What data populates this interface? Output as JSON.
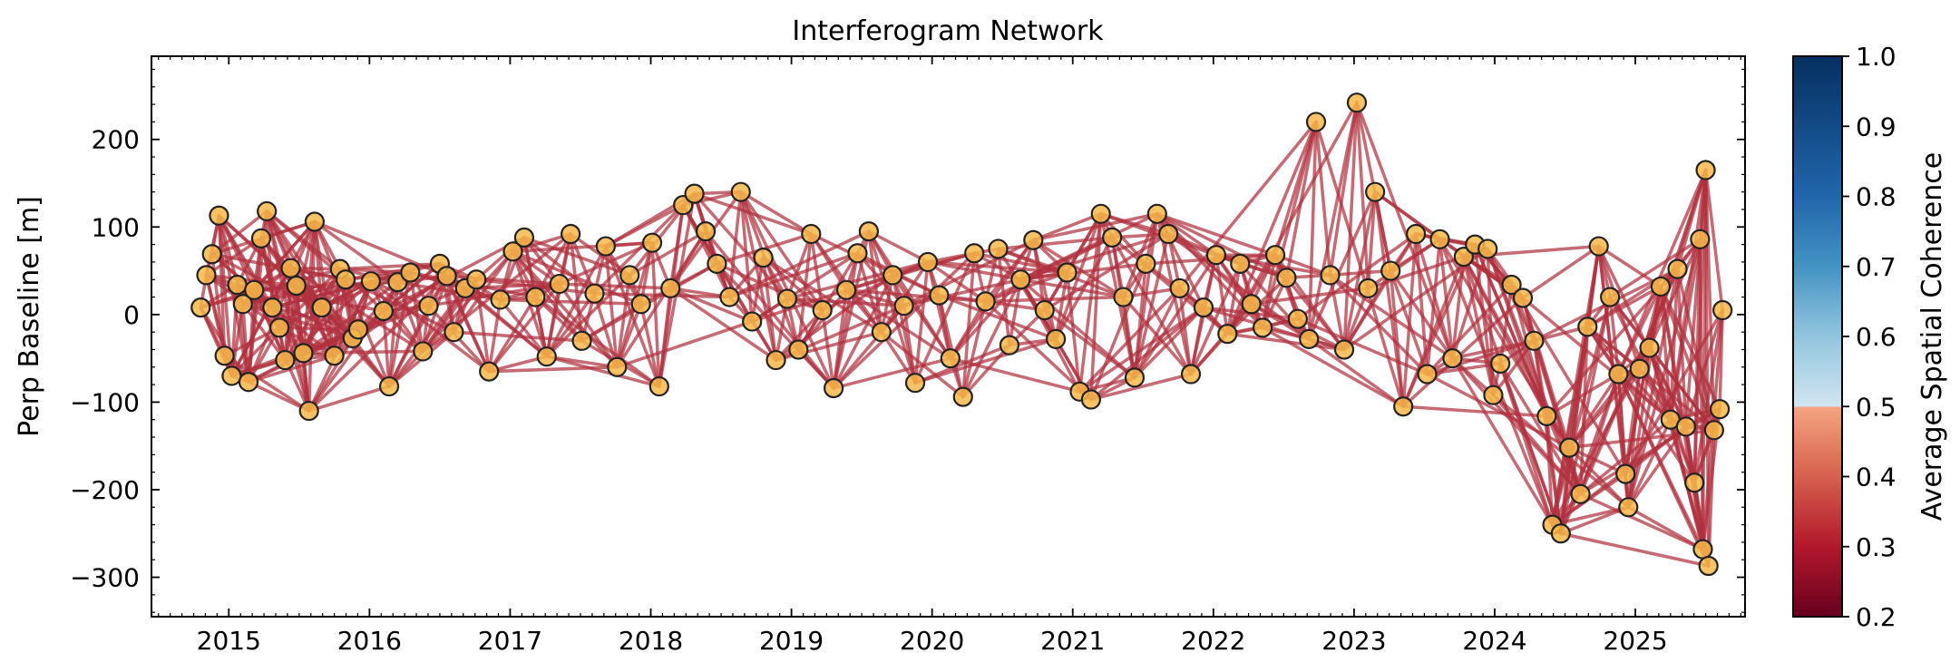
{
  "chart_data": {
    "type": "scatter",
    "title": "Interferogram Network",
    "xlabel": "",
    "ylabel": "Perp Baseline [m]",
    "xlim": [
      2014.45,
      2025.78
    ],
    "ylim": [
      -345,
      295
    ],
    "xticks": [
      2015,
      2016,
      2017,
      2018,
      2019,
      2020,
      2021,
      2022,
      2023,
      2024,
      2025
    ],
    "xticklabels": [
      "2015",
      "2016",
      "2017",
      "2018",
      "2019",
      "2020",
      "2021",
      "2022",
      "2023",
      "2024",
      "2025"
    ],
    "yticks": [
      200,
      100,
      0,
      -100,
      -200,
      -300
    ],
    "yticklabels": [
      "200",
      "100",
      "0",
      "−100",
      "−200",
      "−300"
    ],
    "grid": false,
    "colorbar": {
      "label": "Average Spatial Coherence",
      "range": [
        0.2,
        1.0
      ],
      "ticks": [
        1.0,
        0.9,
        0.8,
        0.7,
        0.6,
        0.5,
        0.4,
        0.3,
        0.2
      ],
      "ticklabels": [
        "1.0",
        "0.9",
        "0.8",
        "0.7",
        "0.6",
        "0.5",
        "0.4",
        "0.3",
        "0.2"
      ],
      "colormap": "RdBu",
      "saturated_above": 0.7
    },
    "point_color": "#f7b84a",
    "point_edge_color": "#222222",
    "edge_color": "#b0303e",
    "acquisitions": [
      [
        2014.8,
        8
      ],
      [
        2014.84,
        45
      ],
      [
        2014.88,
        69
      ],
      [
        2014.93,
        113
      ],
      [
        2014.97,
        -47
      ],
      [
        2015.02,
        -70
      ],
      [
        2015.06,
        34
      ],
      [
        2015.1,
        12
      ],
      [
        2015.14,
        -77
      ],
      [
        2015.18,
        28
      ],
      [
        2015.23,
        87
      ],
      [
        2015.27,
        118
      ],
      [
        2015.31,
        8
      ],
      [
        2015.36,
        -15
      ],
      [
        2015.4,
        -52
      ],
      [
        2015.44,
        53
      ],
      [
        2015.48,
        33
      ],
      [
        2015.53,
        -44
      ],
      [
        2015.57,
        -110
      ],
      [
        2015.61,
        106
      ],
      [
        2015.66,
        8
      ],
      [
        2015.75,
        -47
      ],
      [
        2015.79,
        52
      ],
      [
        2015.83,
        40
      ],
      [
        2015.88,
        -27
      ],
      [
        2015.92,
        -17
      ],
      [
        2016.01,
        38
      ],
      [
        2016.1,
        4
      ],
      [
        2016.14,
        -82
      ],
      [
        2016.2,
        37
      ],
      [
        2016.29,
        48
      ],
      [
        2016.38,
        -42
      ],
      [
        2016.42,
        10
      ],
      [
        2016.5,
        58
      ],
      [
        2016.55,
        44
      ],
      [
        2016.6,
        -20
      ],
      [
        2016.68,
        30
      ],
      [
        2016.76,
        40
      ],
      [
        2016.85,
        -65
      ],
      [
        2016.93,
        17
      ],
      [
        2017.02,
        72
      ],
      [
        2017.1,
        88
      ],
      [
        2017.18,
        20
      ],
      [
        2017.26,
        -48
      ],
      [
        2017.35,
        35
      ],
      [
        2017.43,
        92
      ],
      [
        2017.51,
        -30
      ],
      [
        2017.6,
        24
      ],
      [
        2017.68,
        78
      ],
      [
        2017.76,
        -60
      ],
      [
        2017.85,
        45
      ],
      [
        2017.93,
        12
      ],
      [
        2018.01,
        82
      ],
      [
        2018.06,
        -82
      ],
      [
        2018.14,
        30
      ],
      [
        2018.23,
        125
      ],
      [
        2018.31,
        138
      ],
      [
        2018.39,
        95
      ],
      [
        2018.47,
        58
      ],
      [
        2018.56,
        20
      ],
      [
        2018.64,
        140
      ],
      [
        2018.72,
        -8
      ],
      [
        2018.8,
        65
      ],
      [
        2018.89,
        -52
      ],
      [
        2018.97,
        18
      ],
      [
        2019.05,
        -40
      ],
      [
        2019.14,
        92
      ],
      [
        2019.22,
        5
      ],
      [
        2019.3,
        -84
      ],
      [
        2019.39,
        28
      ],
      [
        2019.47,
        70
      ],
      [
        2019.55,
        95
      ],
      [
        2019.64,
        -20
      ],
      [
        2019.72,
        45
      ],
      [
        2019.8,
        10
      ],
      [
        2019.88,
        -78
      ],
      [
        2019.97,
        60
      ],
      [
        2020.05,
        22
      ],
      [
        2020.13,
        -50
      ],
      [
        2020.22,
        -94
      ],
      [
        2020.3,
        70
      ],
      [
        2020.38,
        15
      ],
      [
        2020.47,
        75
      ],
      [
        2020.55,
        -35
      ],
      [
        2020.63,
        40
      ],
      [
        2020.72,
        85
      ],
      [
        2020.8,
        5
      ],
      [
        2020.88,
        -28
      ],
      [
        2020.96,
        48
      ],
      [
        2021.05,
        -88
      ],
      [
        2021.13,
        -97
      ],
      [
        2021.2,
        115
      ],
      [
        2021.28,
        88
      ],
      [
        2021.36,
        20
      ],
      [
        2021.44,
        -72
      ],
      [
        2021.52,
        58
      ],
      [
        2021.6,
        115
      ],
      [
        2021.68,
        92
      ],
      [
        2021.76,
        30
      ],
      [
        2021.84,
        -68
      ],
      [
        2021.93,
        8
      ],
      [
        2022.02,
        68
      ],
      [
        2022.1,
        -22
      ],
      [
        2022.19,
        58
      ],
      [
        2022.27,
        12
      ],
      [
        2022.35,
        -15
      ],
      [
        2022.44,
        68
      ],
      [
        2022.52,
        42
      ],
      [
        2022.6,
        -5
      ],
      [
        2022.68,
        -28
      ],
      [
        2022.73,
        220
      ],
      [
        2022.83,
        45
      ],
      [
        2022.93,
        -40
      ],
      [
        2023.02,
        242
      ],
      [
        2023.1,
        30
      ],
      [
        2023.15,
        140
      ],
      [
        2023.26,
        50
      ],
      [
        2023.35,
        -105
      ],
      [
        2023.44,
        92
      ],
      [
        2023.52,
        -68
      ],
      [
        2023.61,
        86
      ],
      [
        2023.7,
        -50
      ],
      [
        2023.78,
        66
      ],
      [
        2023.86,
        80
      ],
      [
        2023.95,
        75
      ],
      [
        2023.99,
        -92
      ],
      [
        2024.04,
        -56
      ],
      [
        2024.12,
        34
      ],
      [
        2024.2,
        19
      ],
      [
        2024.28,
        -30
      ],
      [
        2024.37,
        -116
      ],
      [
        2024.41,
        -240
      ],
      [
        2024.47,
        -250
      ],
      [
        2024.53,
        -152
      ],
      [
        2024.61,
        -205
      ],
      [
        2024.66,
        -14
      ],
      [
        2024.74,
        78
      ],
      [
        2024.82,
        20
      ],
      [
        2024.88,
        -68
      ],
      [
        2024.93,
        -182
      ],
      [
        2024.95,
        -220
      ],
      [
        2025.03,
        -62
      ],
      [
        2025.1,
        -38
      ],
      [
        2025.18,
        32
      ],
      [
        2025.25,
        -120
      ],
      [
        2025.3,
        52
      ],
      [
        2025.36,
        -128
      ],
      [
        2025.42,
        -192
      ],
      [
        2025.46,
        86
      ],
      [
        2025.48,
        -268
      ],
      [
        2025.5,
        165
      ],
      [
        2025.52,
        -287
      ],
      [
        2025.56,
        -132
      ],
      [
        2025.6,
        -108
      ],
      [
        2025.62,
        5
      ]
    ],
    "connections": "each acquisition links to roughly three to six others within about one year; the dense web is drawn by the page script"
  }
}
